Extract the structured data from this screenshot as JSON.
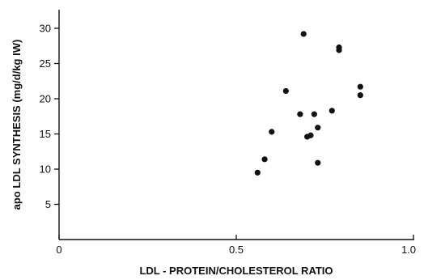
{
  "chart_data": {
    "type": "scatter",
    "title": "",
    "xlabel": "LDL - PROTEIN/CHOLESTEROL RATIO",
    "ylabel": "apo LDL SYNTHESIS (mg/d/kg IW)",
    "xlim": [
      0,
      1.0
    ],
    "ylim": [
      0,
      32
    ],
    "xticks": [
      {
        "value": 0,
        "label": "0"
      },
      {
        "value": 0.5,
        "label": "0.5"
      },
      {
        "value": 1.0,
        "label": "1.0"
      }
    ],
    "yticks": [
      {
        "value": 5,
        "label": "5"
      },
      {
        "value": 10,
        "label": "10"
      },
      {
        "value": 15,
        "label": "15"
      },
      {
        "value": 20,
        "label": "20"
      },
      {
        "value": 25,
        "label": "25"
      },
      {
        "value": 30,
        "label": "30"
      }
    ],
    "grid": false,
    "points": [
      {
        "x": 0.56,
        "y": 9.5
      },
      {
        "x": 0.58,
        "y": 11.4
      },
      {
        "x": 0.6,
        "y": 15.3
      },
      {
        "x": 0.64,
        "y": 21.1
      },
      {
        "x": 0.68,
        "y": 17.8
      },
      {
        "x": 0.69,
        "y": 29.2
      },
      {
        "x": 0.7,
        "y": 14.6
      },
      {
        "x": 0.71,
        "y": 14.8
      },
      {
        "x": 0.72,
        "y": 17.8
      },
      {
        "x": 0.73,
        "y": 15.9
      },
      {
        "x": 0.73,
        "y": 10.9
      },
      {
        "x": 0.77,
        "y": 18.3
      },
      {
        "x": 0.79,
        "y": 27.3
      },
      {
        "x": 0.79,
        "y": 26.9
      },
      {
        "x": 0.85,
        "y": 21.7
      },
      {
        "x": 0.85,
        "y": 20.5
      }
    ]
  }
}
